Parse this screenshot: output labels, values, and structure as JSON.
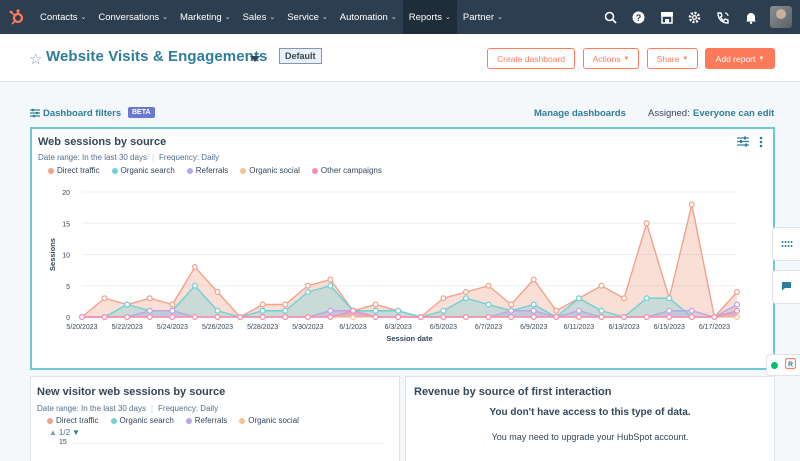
{
  "nav": {
    "items": [
      {
        "label": "Contacts",
        "active": false
      },
      {
        "label": "Conversations",
        "active": false
      },
      {
        "label": "Marketing",
        "active": false
      },
      {
        "label": "Sales",
        "active": false
      },
      {
        "label": "Service",
        "active": false
      },
      {
        "label": "Automation",
        "active": false
      },
      {
        "label": "Reports",
        "active": true
      },
      {
        "label": "Partner",
        "active": false
      }
    ],
    "icons": [
      "search-icon",
      "help-icon",
      "marketplace-icon",
      "settings-icon",
      "calling-icon",
      "notifications-icon"
    ]
  },
  "header": {
    "title": "Website Visits & Engagements",
    "default_badge": "Default",
    "create_dashboard": "Create dashboard",
    "actions": "Actions",
    "share": "Share",
    "add_report": "Add report"
  },
  "filters": {
    "label": "Dashboard filters",
    "beta": "BETA",
    "manage": "Manage dashboards",
    "assigned_label": "Assigned:",
    "assigned_value": "Everyone can edit"
  },
  "card1": {
    "title": "Web sessions by source",
    "date_range": "Date range: In the last 30 days",
    "frequency": "Frequency: Daily"
  },
  "card2": {
    "title": "New visitor web sessions by source",
    "date_range": "Date range: In the last 30 days",
    "frequency": "Frequency: Daily",
    "pager": "1/2",
    "first_tick": "15",
    "legend": [
      {
        "name": "Direct traffic",
        "color": "#f2a28b"
      },
      {
        "name": "Organic search",
        "color": "#6fd0d6"
      },
      {
        "name": "Referrals",
        "color": "#b9a7e6"
      },
      {
        "name": "Organic social",
        "color": "#f6c490"
      }
    ]
  },
  "card3": {
    "title": "Revenue by source of first interaction",
    "msg1": "You don't have access to this type of data.",
    "msg2": "You may need to upgrade your HubSpot account."
  },
  "colors": {
    "accent": "#ff7a59",
    "nav": "#2d3e50",
    "link": "#2e7d9a"
  },
  "chart_data": {
    "type": "area",
    "xlabel": "Session date",
    "ylabel": "Sessions",
    "ylim": [
      0,
      20
    ],
    "yticks": [
      0,
      5,
      10,
      15,
      20
    ],
    "x": [
      "5/20/2023",
      "5/21/2023",
      "5/22/2023",
      "5/23/2023",
      "5/24/2023",
      "5/25/2023",
      "5/26/2023",
      "5/27/2023",
      "5/28/2023",
      "5/29/2023",
      "5/30/2023",
      "5/31/2023",
      "6/1/2023",
      "6/2/2023",
      "6/3/2023",
      "6/4/2023",
      "6/5/2023",
      "6/6/2023",
      "6/7/2023",
      "6/8/2023",
      "6/9/2023",
      "6/10/2023",
      "6/11/2023",
      "6/12/2023",
      "6/13/2023",
      "6/14/2023",
      "6/15/2023",
      "6/16/2023",
      "6/17/2023",
      "6/18/2023"
    ],
    "xtick_labels": [
      "5/20/2023",
      "5/22/2023",
      "5/24/2023",
      "5/26/2023",
      "5/28/2023",
      "5/30/2023",
      "6/1/2023",
      "6/3/2023",
      "6/5/2023",
      "6/7/2023",
      "6/9/2023",
      "6/11/2023",
      "6/13/2023",
      "6/15/2023",
      "6/17/2023"
    ],
    "legend_placement": "top",
    "series": [
      {
        "name": "Direct traffic",
        "color": "#f2a28b",
        "values": [
          0,
          3,
          2,
          3,
          2,
          8,
          4,
          0,
          2,
          2,
          5,
          6,
          1,
          2,
          1,
          0,
          3,
          4,
          5,
          2,
          6,
          1,
          3,
          5,
          3,
          15,
          3,
          18,
          0,
          4
        ]
      },
      {
        "name": "Organic search",
        "color": "#6fd0d6",
        "values": [
          0,
          0,
          2,
          1,
          1,
          5,
          1,
          0,
          1,
          1,
          4,
          5,
          1,
          1,
          1,
          0,
          1,
          3,
          2,
          1,
          2,
          0,
          3,
          1,
          0,
          3,
          3,
          0,
          0,
          1
        ]
      },
      {
        "name": "Referrals",
        "color": "#b9a7e6",
        "values": [
          0,
          0,
          0,
          1,
          1,
          0,
          0,
          0,
          0,
          0,
          0,
          1,
          1,
          0,
          0,
          0,
          0,
          0,
          0,
          1,
          1,
          0,
          1,
          0,
          0,
          0,
          1,
          1,
          0,
          2
        ]
      },
      {
        "name": "Organic social",
        "color": "#f6c490",
        "values": [
          0,
          0,
          0,
          0,
          0,
          0,
          0,
          0,
          0,
          0,
          0,
          0,
          0,
          0,
          0,
          0,
          0,
          0,
          0,
          0,
          0,
          0,
          0,
          0,
          0,
          0,
          0,
          0,
          0,
          0
        ]
      },
      {
        "name": "Other campaigns",
        "color": "#f48fb1",
        "values": [
          0,
          0,
          0,
          0,
          0,
          0,
          0,
          0,
          0,
          0,
          0,
          0,
          1,
          0,
          0,
          0,
          0,
          0,
          0,
          0,
          0,
          0,
          0,
          0,
          0,
          0,
          0,
          0,
          0,
          1
        ]
      }
    ]
  }
}
